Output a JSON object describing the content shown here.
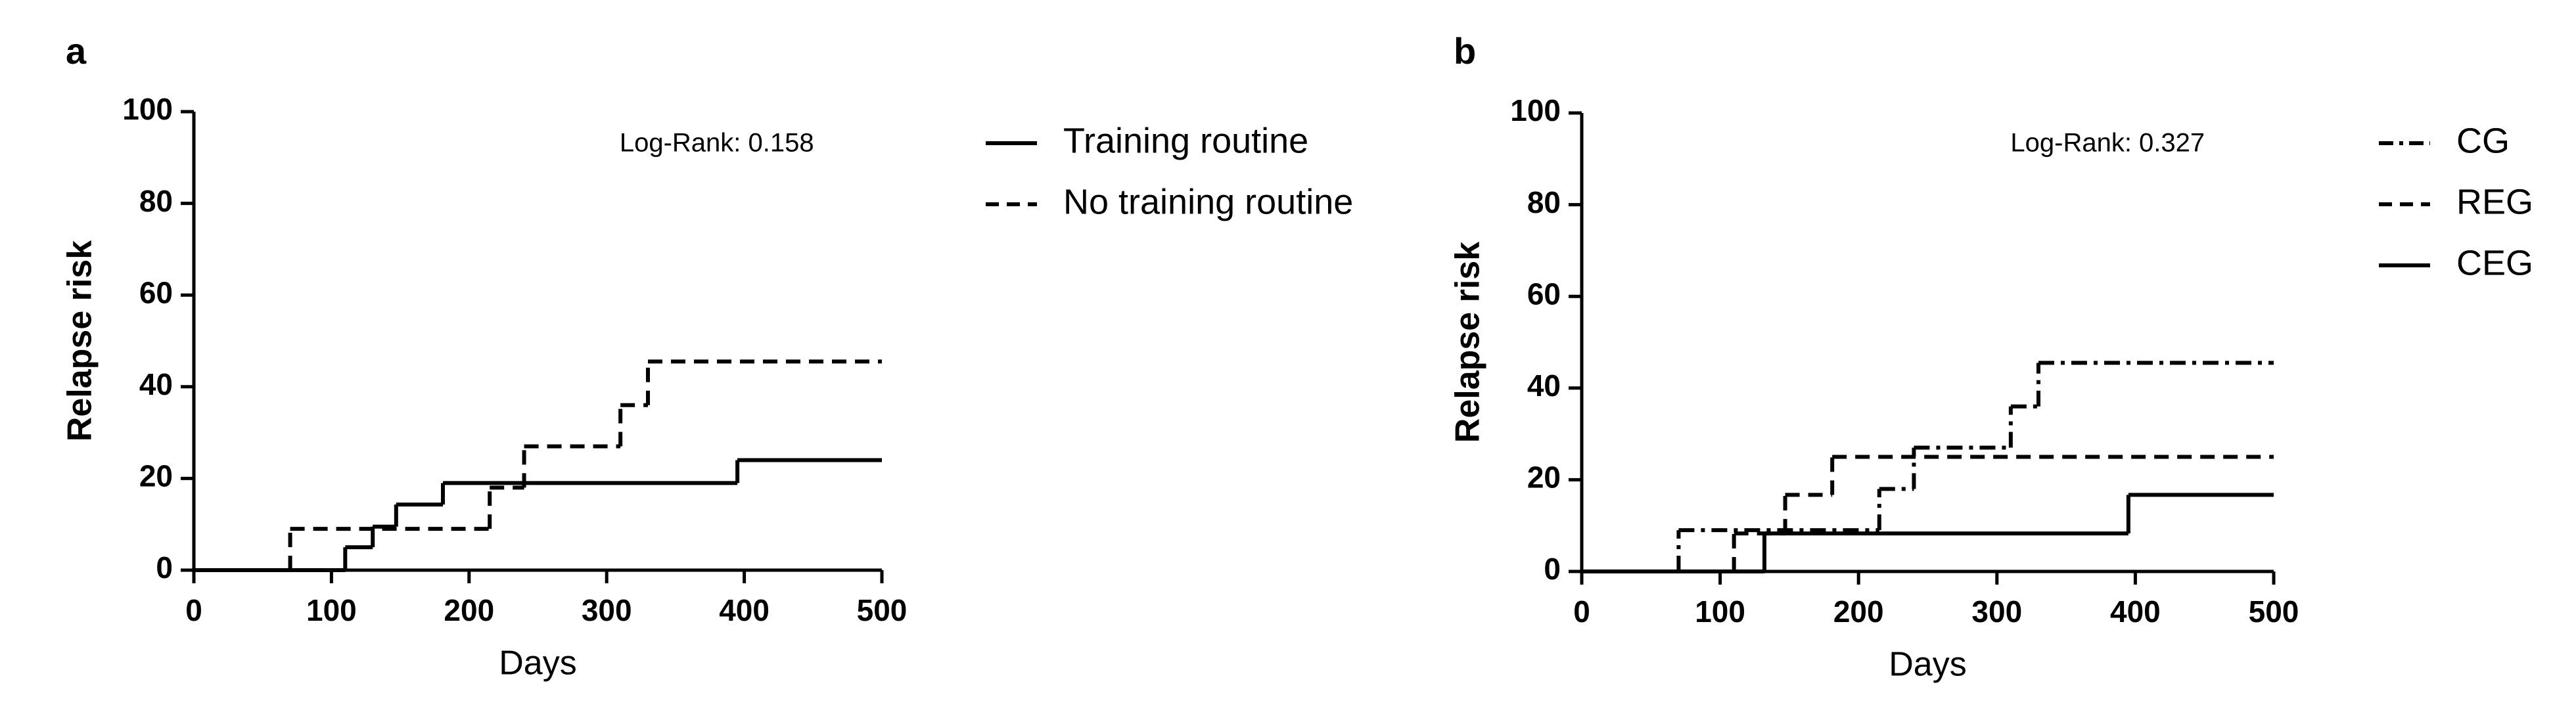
{
  "chart_data": [
    {
      "type": "line",
      "step": true,
      "title": "a",
      "annotation": "Log-Rank: 0.158",
      "xlabel": "Days",
      "ylabel": "Relapse risk",
      "xlim": [
        0,
        500
      ],
      "ylim": [
        0,
        100
      ],
      "xticks": [
        0,
        100,
        200,
        300,
        400,
        500
      ],
      "yticks": [
        0,
        20,
        40,
        60,
        80,
        100
      ],
      "series": [
        {
          "name": "Training routine",
          "color": "#000000",
          "linestyle": "solid",
          "x": [
            0,
            110,
            130,
            147,
            181,
            395,
            500
          ],
          "values": [
            0,
            5,
            9.5,
            14.3,
            19,
            24,
            24
          ]
        },
        {
          "name": "No training routine",
          "color": "#000000",
          "linestyle": "dashed",
          "x": [
            0,
            70,
            215,
            240,
            310,
            330,
            500
          ],
          "values": [
            0,
            9,
            18,
            27,
            36,
            45.5,
            45.5
          ]
        }
      ]
    },
    {
      "type": "line",
      "step": true,
      "title": "b",
      "annotation": "Log-Rank: 0.327",
      "xlabel": "Days",
      "ylabel": "Relapse risk",
      "xlim": [
        0,
        500
      ],
      "ylim": [
        0,
        100
      ],
      "xticks": [
        0,
        100,
        200,
        300,
        400,
        500
      ],
      "yticks": [
        0,
        20,
        40,
        60,
        80,
        100
      ],
      "series": [
        {
          "name": "CG",
          "color": "#000000",
          "linestyle": "dashdot",
          "x": [
            0,
            70,
            215,
            240,
            310,
            330,
            500
          ],
          "values": [
            0,
            9,
            18,
            27,
            36,
            45.5,
            45.5
          ]
        },
        {
          "name": "REG",
          "color": "#000000",
          "linestyle": "dashed",
          "x": [
            0,
            110,
            147,
            181,
            500
          ],
          "values": [
            0,
            8.3,
            16.7,
            25,
            25
          ]
        },
        {
          "name": "CEG",
          "color": "#000000",
          "linestyle": "solid",
          "x": [
            0,
            132,
            395,
            500
          ],
          "values": [
            0,
            8.3,
            16.7,
            16.7
          ]
        }
      ]
    }
  ]
}
